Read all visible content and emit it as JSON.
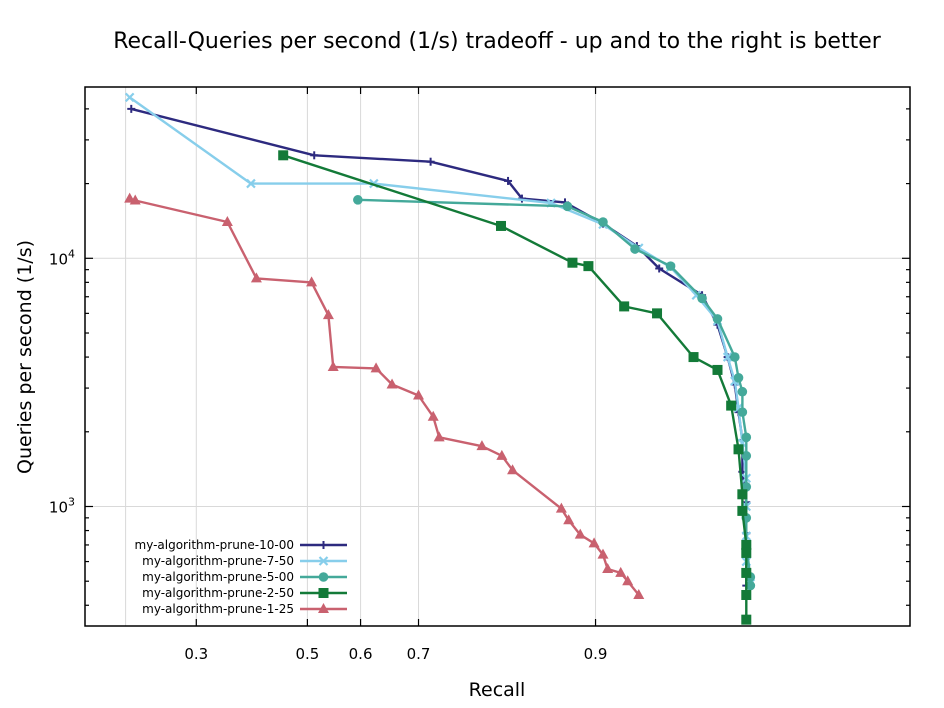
{
  "chart_data": {
    "type": "line",
    "title": "Recall-Queries per second (1/s) tradeoff - up and to the right is better",
    "xlabel": "Recall",
    "ylabel": "Queries per second (1/s)",
    "x_scale": "logit",
    "y_scale": "log",
    "xlim": [
      0.155,
      0.99
    ],
    "ylim": [
      330,
      49000
    ],
    "x_ticks": [
      {
        "value": 0.3,
        "label": "0.3"
      },
      {
        "value": 0.5,
        "label": "0.5"
      },
      {
        "value": 0.6,
        "label": "0.6"
      },
      {
        "value": 0.7,
        "label": "0.7"
      },
      {
        "value": 0.9,
        "label": "0.9"
      }
    ],
    "x_gridlines": [
      0.2,
      0.3,
      0.5,
      0.6,
      0.7,
      0.9
    ],
    "y_ticks": [
      {
        "value": 1000,
        "label_base": "10",
        "label_exp": "3"
      },
      {
        "value": 10000,
        "label_base": "10",
        "label_exp": "4"
      }
    ],
    "grid": true,
    "legend_position": "bottom-left",
    "series": [
      {
        "name": "my-algorithm-prune-10-00",
        "color": "#2d2a7f",
        "marker": "plus",
        "points": [
          [
            0.207,
            40000
          ],
          [
            0.513,
            26000
          ],
          [
            0.719,
            24500
          ],
          [
            0.822,
            20500
          ],
          [
            0.837,
            17400
          ],
          [
            0.877,
            16800
          ],
          [
            0.905,
            13800
          ],
          [
            0.925,
            11200
          ],
          [
            0.936,
            9100
          ],
          [
            0.953,
            7100
          ],
          [
            0.958,
            5400
          ],
          [
            0.961,
            4000
          ],
          [
            0.963,
            3100
          ],
          [
            0.964,
            2400
          ],
          [
            0.965,
            1850
          ],
          [
            0.965,
            1380
          ],
          [
            0.966,
            1040
          ],
          [
            0.966,
            780
          ],
          [
            0.966,
            640
          ],
          [
            0.966,
            540
          ],
          [
            0.966,
            480
          ]
        ]
      },
      {
        "name": "my-algorithm-prune-7-50",
        "color": "#87ceeb",
        "marker": "cross",
        "points": [
          [
            0.205,
            44500
          ],
          [
            0.394,
            20000
          ],
          [
            0.624,
            20000
          ],
          [
            0.865,
            16700
          ],
          [
            0.905,
            13700
          ],
          [
            0.926,
            11000
          ],
          [
            0.941,
            9200
          ],
          [
            0.951,
            7100
          ],
          [
            0.958,
            5600
          ],
          [
            0.961,
            4000
          ],
          [
            0.963,
            3200
          ],
          [
            0.964,
            2500
          ],
          [
            0.965,
            1800
          ],
          [
            0.966,
            1300
          ],
          [
            0.966,
            1000
          ],
          [
            0.966,
            760
          ],
          [
            0.966,
            600
          ],
          [
            0.967,
            490
          ]
        ]
      },
      {
        "name": "my-algorithm-prune-5-00",
        "color": "#44a99a",
        "marker": "circle",
        "points": [
          [
            0.595,
            17200
          ],
          [
            0.879,
            16200
          ],
          [
            0.905,
            14000
          ],
          [
            0.924,
            10900
          ],
          [
            0.941,
            9300
          ],
          [
            0.953,
            6900
          ],
          [
            0.958,
            5700
          ],
          [
            0.963,
            4000
          ],
          [
            0.964,
            3300
          ],
          [
            0.965,
            2900
          ],
          [
            0.965,
            2400
          ],
          [
            0.966,
            1900
          ],
          [
            0.966,
            1600
          ],
          [
            0.966,
            1200
          ],
          [
            0.966,
            900
          ],
          [
            0.966,
            700
          ],
          [
            0.967,
            520
          ],
          [
            0.967,
            480
          ]
        ]
      },
      {
        "name": "my-algorithm-prune-2-50",
        "color": "#137a38",
        "marker": "square",
        "points": [
          [
            0.454,
            26000
          ],
          [
            0.814,
            13500
          ],
          [
            0.883,
            9600
          ],
          [
            0.895,
            9300
          ],
          [
            0.918,
            6400
          ],
          [
            0.935,
            6000
          ],
          [
            0.95,
            4000
          ],
          [
            0.958,
            3550
          ],
          [
            0.962,
            2550
          ],
          [
            0.964,
            1700
          ],
          [
            0.965,
            1120
          ],
          [
            0.965,
            960
          ],
          [
            0.966,
            700
          ],
          [
            0.966,
            650
          ],
          [
            0.966,
            540
          ],
          [
            0.966,
            440
          ],
          [
            0.966,
            350
          ]
        ]
      },
      {
        "name": "my-algorithm-prune-1-25",
        "color": "#c9616f",
        "marker": "triangle",
        "points": [
          [
            0.205,
            17400
          ],
          [
            0.212,
            17100
          ],
          [
            0.352,
            14000
          ],
          [
            0.404,
            8300
          ],
          [
            0.508,
            8000
          ],
          [
            0.54,
            5900
          ],
          [
            0.549,
            3650
          ],
          [
            0.628,
            3600
          ],
          [
            0.656,
            3100
          ],
          [
            0.7,
            2800
          ],
          [
            0.723,
            2300
          ],
          [
            0.732,
            1900
          ],
          [
            0.791,
            1750
          ],
          [
            0.815,
            1600
          ],
          [
            0.827,
            1400
          ],
          [
            0.874,
            980
          ],
          [
            0.88,
            880
          ],
          [
            0.889,
            770
          ],
          [
            0.899,
            710
          ],
          [
            0.905,
            640
          ],
          [
            0.908,
            560
          ],
          [
            0.916,
            540
          ],
          [
            0.92,
            500
          ],
          [
            0.926,
            440
          ]
        ]
      }
    ]
  }
}
